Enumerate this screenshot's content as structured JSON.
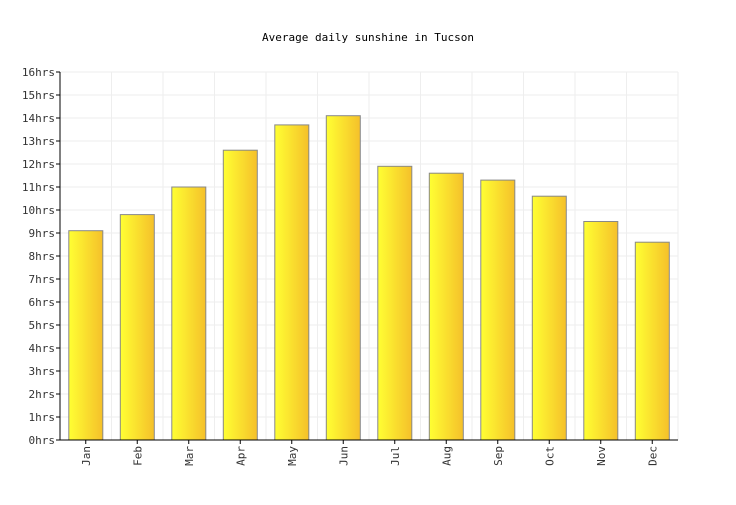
{
  "chart_data": {
    "type": "bar",
    "title": "Average daily sunshine in Tucson",
    "xlabel": "",
    "ylabel": "",
    "categories": [
      "Jan",
      "Feb",
      "Mar",
      "Apr",
      "May",
      "Jun",
      "Jul",
      "Aug",
      "Sep",
      "Oct",
      "Nov",
      "Dec"
    ],
    "values": [
      9.1,
      9.8,
      11.0,
      12.6,
      13.7,
      14.1,
      11.9,
      11.6,
      11.3,
      10.6,
      9.5,
      8.6
    ],
    "ylim": [
      0,
      16
    ],
    "yticks": [
      "0hrs",
      "1hrs",
      "2hrs",
      "3hrs",
      "4hrs",
      "5hrs",
      "6hrs",
      "7hrs",
      "8hrs",
      "9hrs",
      "10hrs",
      "11hrs",
      "12hrs",
      "13hrs",
      "14hrs",
      "15hrs",
      "16hrs"
    ],
    "grid": true,
    "legend": "none",
    "colors": {
      "bar_light": "#ffff33",
      "bar_dark": "#f5c02a",
      "bar_border": "#888888",
      "grid": "#eeeeee",
      "axis": "#000000"
    }
  }
}
